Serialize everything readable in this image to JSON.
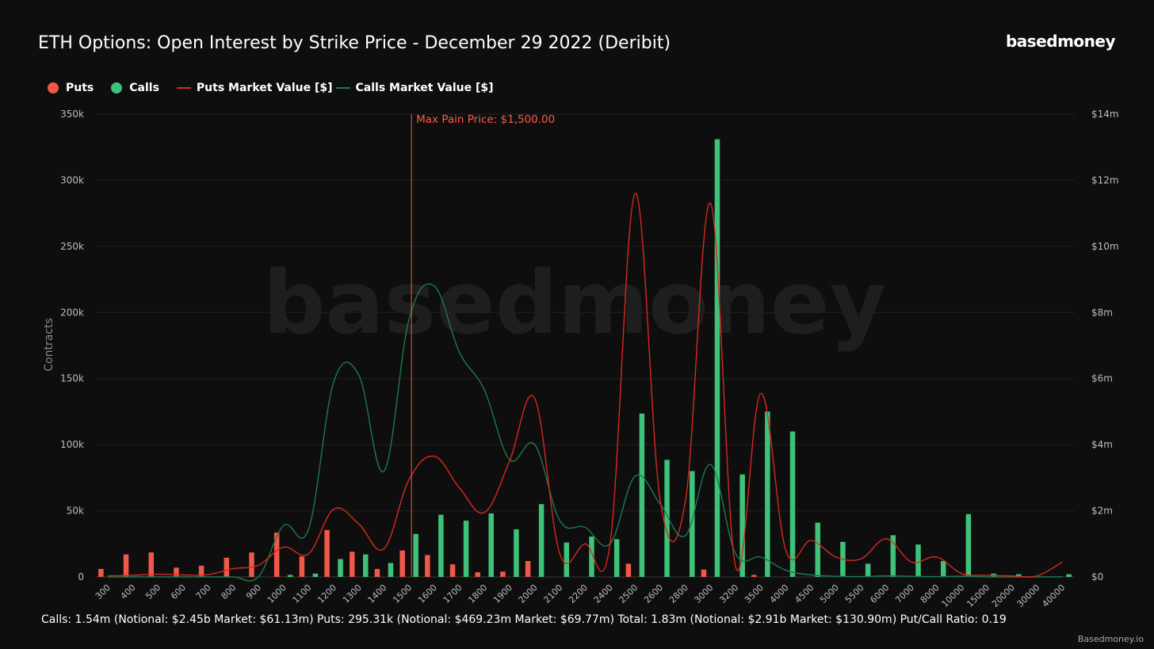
{
  "brand": "basedmoney",
  "footer": "Basedmoney.io",
  "summary": "Calls: 1.54m (Notional: $2.45b Market: $61.13m) Puts: 295.31k (Notional: $469.23m Market: $69.77m) Total: 1.83m (Notional: $2.91b Market: $130.90m) Put/Call Ratio: 0.19",
  "colors": {
    "puts": "#f0584a",
    "calls": "#3ec27a",
    "puts_line": "#d8281f",
    "calls_line": "#1c7a4e",
    "background": "#0e0e0e",
    "max_pain": "#ff5a48"
  },
  "chart_data": {
    "type": "bar",
    "title": "ETH Options: Open Interest by Strike Price - December 29 2022 (Deribit)",
    "watermark": "basedmoney",
    "ylabel": "Contracts",
    "xlabel": "",
    "ylim": [
      0,
      350000
    ],
    "y2lim": [
      0,
      14000000
    ],
    "y_ticks": [
      "0",
      "50k",
      "100k",
      "150k",
      "200k",
      "250k",
      "300k",
      "350k"
    ],
    "y2_ticks": [
      "$0",
      "$2m",
      "$4m",
      "$6m",
      "$8m",
      "$10m",
      "$12m",
      "$14m"
    ],
    "legend": [
      "Puts",
      "Calls",
      "Puts Market Value [$]",
      "Calls Market Value [$]"
    ],
    "annotation": {
      "label": "Max Pain Price: $1,500.00",
      "category": "1500"
    },
    "categories": [
      "300",
      "400",
      "500",
      "600",
      "700",
      "800",
      "900",
      "1000",
      "1100",
      "1200",
      "1300",
      "1400",
      "1500",
      "1600",
      "1700",
      "1800",
      "1900",
      "2000",
      "2100",
      "2200",
      "2400",
      "2500",
      "2600",
      "2800",
      "3000",
      "3200",
      "3500",
      "4000",
      "4500",
      "5000",
      "5500",
      "6000",
      "7000",
      "8000",
      "10000",
      "15000",
      "20000",
      "30000",
      "40000"
    ],
    "series": [
      {
        "name": "Puts",
        "kind": "bar",
        "values": [
          6000,
          17000,
          18500,
          7000,
          8500,
          14500,
          18500,
          33500,
          15500,
          35500,
          19000,
          6000,
          20000,
          16500,
          9500,
          3500,
          4000,
          12000,
          0,
          0,
          0,
          10000,
          0,
          0,
          5500,
          0,
          1500,
          0,
          0,
          0,
          0,
          0,
          0,
          0,
          0,
          0,
          0,
          0,
          0
        ]
      },
      {
        "name": "Calls",
        "kind": "bar",
        "values": [
          0,
          0,
          0,
          0,
          0,
          0,
          0,
          1500,
          2500,
          13500,
          17000,
          10500,
          32500,
          47000,
          42500,
          48000,
          36000,
          55000,
          26000,
          30500,
          28500,
          123500,
          88500,
          80000,
          331000,
          77500,
          125000,
          110000,
          41000,
          26500,
          10000,
          31500,
          24500,
          12000,
          47500,
          2500,
          2000,
          0,
          2000
        ]
      },
      {
        "name": "Puts Market Value [$]",
        "kind": "line",
        "values": [
          30000,
          50000,
          80000,
          60000,
          70000,
          250000,
          350000,
          900000,
          700000,
          2050000,
          1600000,
          850000,
          2950000,
          3650000,
          2700000,
          1950000,
          3500000,
          5400000,
          700000,
          1000000,
          1000000,
          11600000,
          2300000,
          2300000,
          11300000,
          300000,
          5550000,
          800000,
          1100000,
          600000,
          550000,
          1150000,
          450000,
          600000,
          100000,
          50000,
          30000,
          30000,
          450000
        ]
      },
      {
        "name": "Calls Market Value [$]",
        "kind": "line",
        "values": [
          0,
          0,
          0,
          0,
          0,
          0,
          0,
          1550000,
          1450000,
          5900000,
          6100000,
          3200000,
          7800000,
          8800000,
          6800000,
          5650000,
          3550000,
          4000000,
          1700000,
          1500000,
          1000000,
          3050000,
          2200000,
          1250000,
          3400000,
          700000,
          600000,
          200000,
          60000,
          20000,
          10000,
          30000,
          20000,
          10000,
          20000,
          0,
          0,
          0,
          0
        ]
      }
    ]
  }
}
